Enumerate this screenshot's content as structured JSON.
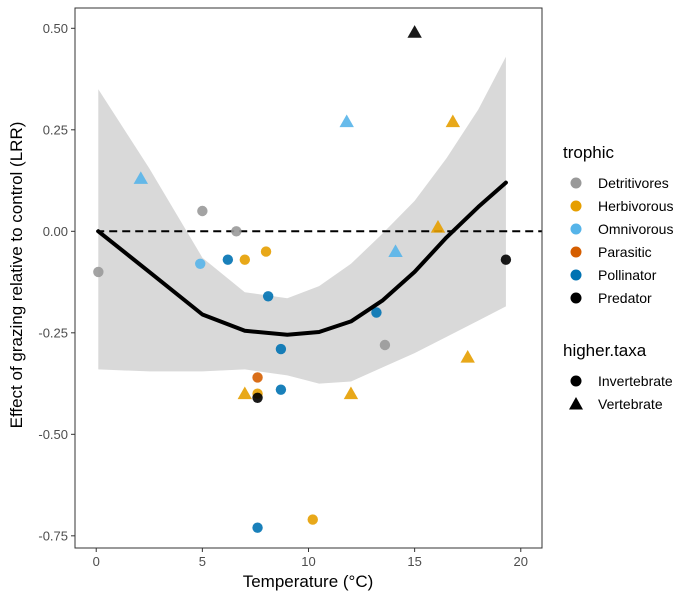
{
  "chart_data": {
    "type": "scatter",
    "xlabel": "Temperature (°C)",
    "ylabel": "Effect of grazing relative to control (LRR)",
    "xlim": [
      -1,
      21
    ],
    "ylim": [
      -0.78,
      0.55
    ],
    "x_ticks": [
      0,
      5,
      10,
      15,
      20
    ],
    "y_ticks": [
      -0.75,
      -0.5,
      -0.25,
      0.0,
      0.25,
      0.5
    ],
    "x_tick_labels": [
      "0",
      "5",
      "10",
      "15",
      "20"
    ],
    "y_tick_labels": [
      "-0.75",
      "-0.50",
      "-0.25",
      "0.00",
      "0.25",
      "0.50"
    ],
    "grid": false,
    "reference_line": {
      "y": 0,
      "style": "dashed",
      "color": "#000000"
    },
    "legend_placement": "right",
    "trophic_legend": {
      "title": "trophic",
      "items": [
        {
          "label": "Detritivores",
          "color": "#999999"
        },
        {
          "label": "Herbivorous",
          "color": "#E69F00"
        },
        {
          "label": "Omnivorous",
          "color": "#56B4E9"
        },
        {
          "label": "Parasitic",
          "color": "#D55E00"
        },
        {
          "label": "Pollinator",
          "color": "#0072B2"
        },
        {
          "label": "Predator",
          "color": "#000000"
        }
      ]
    },
    "taxa_legend": {
      "title": "higher.taxa",
      "items": [
        {
          "label": "Invertebrate",
          "shape": "circle"
        },
        {
          "label": "Vertebrate",
          "shape": "triangle"
        }
      ]
    },
    "points": [
      {
        "x": 0.1,
        "y": -0.1,
        "trophic": "Detritivores",
        "taxa": "Invertebrate"
      },
      {
        "x": 2.1,
        "y": 0.13,
        "trophic": "Omnivorous",
        "taxa": "Vertebrate"
      },
      {
        "x": 5.0,
        "y": 0.05,
        "trophic": "Detritivores",
        "taxa": "Invertebrate"
      },
      {
        "x": 4.9,
        "y": -0.08,
        "trophic": "Omnivorous",
        "taxa": "Invertebrate"
      },
      {
        "x": 6.2,
        "y": -0.07,
        "trophic": "Pollinator",
        "taxa": "Invertebrate"
      },
      {
        "x": 6.6,
        "y": 0.0,
        "trophic": "Detritivores",
        "taxa": "Invertebrate"
      },
      {
        "x": 7.0,
        "y": -0.07,
        "trophic": "Herbivorous",
        "taxa": "Invertebrate"
      },
      {
        "x": 7.0,
        "y": -0.4,
        "trophic": "Herbivorous",
        "taxa": "Vertebrate"
      },
      {
        "x": 7.6,
        "y": -0.36,
        "trophic": "Parasitic",
        "taxa": "Invertebrate"
      },
      {
        "x": 7.6,
        "y": -0.4,
        "trophic": "Herbivorous",
        "taxa": "Invertebrate"
      },
      {
        "x": 7.6,
        "y": -0.41,
        "trophic": "Predator",
        "taxa": "Invertebrate"
      },
      {
        "x": 7.6,
        "y": -0.73,
        "trophic": "Pollinator",
        "taxa": "Invertebrate"
      },
      {
        "x": 8.0,
        "y": -0.05,
        "trophic": "Herbivorous",
        "taxa": "Invertebrate"
      },
      {
        "x": 8.1,
        "y": -0.16,
        "trophic": "Pollinator",
        "taxa": "Invertebrate"
      },
      {
        "x": 8.7,
        "y": -0.29,
        "trophic": "Pollinator",
        "taxa": "Invertebrate"
      },
      {
        "x": 8.7,
        "y": -0.39,
        "trophic": "Pollinator",
        "taxa": "Invertebrate"
      },
      {
        "x": 10.2,
        "y": -0.71,
        "trophic": "Herbivorous",
        "taxa": "Invertebrate"
      },
      {
        "x": 11.8,
        "y": 0.27,
        "trophic": "Omnivorous",
        "taxa": "Vertebrate"
      },
      {
        "x": 12.0,
        "y": -0.4,
        "trophic": "Herbivorous",
        "taxa": "Vertebrate"
      },
      {
        "x": 13.2,
        "y": -0.2,
        "trophic": "Pollinator",
        "taxa": "Invertebrate"
      },
      {
        "x": 13.6,
        "y": -0.28,
        "trophic": "Detritivores",
        "taxa": "Invertebrate"
      },
      {
        "x": 14.1,
        "y": -0.05,
        "trophic": "Omnivorous",
        "taxa": "Vertebrate"
      },
      {
        "x": 15.0,
        "y": 0.49,
        "trophic": "Predator",
        "taxa": "Vertebrate"
      },
      {
        "x": 16.1,
        "y": 0.01,
        "trophic": "Herbivorous",
        "taxa": "Vertebrate"
      },
      {
        "x": 16.8,
        "y": 0.27,
        "trophic": "Herbivorous",
        "taxa": "Vertebrate"
      },
      {
        "x": 17.5,
        "y": -0.31,
        "trophic": "Herbivorous",
        "taxa": "Vertebrate"
      },
      {
        "x": 19.3,
        "y": -0.07,
        "trophic": "Predator",
        "taxa": "Invertebrate"
      }
    ],
    "smooth_fit": {
      "x": [
        0.1,
        2.5,
        5.0,
        7.0,
        9.0,
        10.5,
        12.0,
        13.5,
        15.0,
        16.5,
        18.0,
        19.3
      ],
      "y": [
        0.0,
        -0.1,
        -0.205,
        -0.245,
        -0.255,
        -0.248,
        -0.222,
        -0.17,
        -0.1,
        -0.015,
        0.06,
        0.12
      ],
      "lower": [
        -0.34,
        -0.345,
        -0.345,
        -0.34,
        -0.355,
        -0.375,
        -0.37,
        -0.335,
        -0.3,
        -0.26,
        -0.22,
        -0.185
      ],
      "upper": [
        0.35,
        0.155,
        -0.065,
        -0.15,
        -0.165,
        -0.135,
        -0.08,
        -0.005,
        0.075,
        0.18,
        0.3,
        0.43
      ],
      "color": "#000000",
      "ribbon_color": "#d9d9d9"
    }
  }
}
